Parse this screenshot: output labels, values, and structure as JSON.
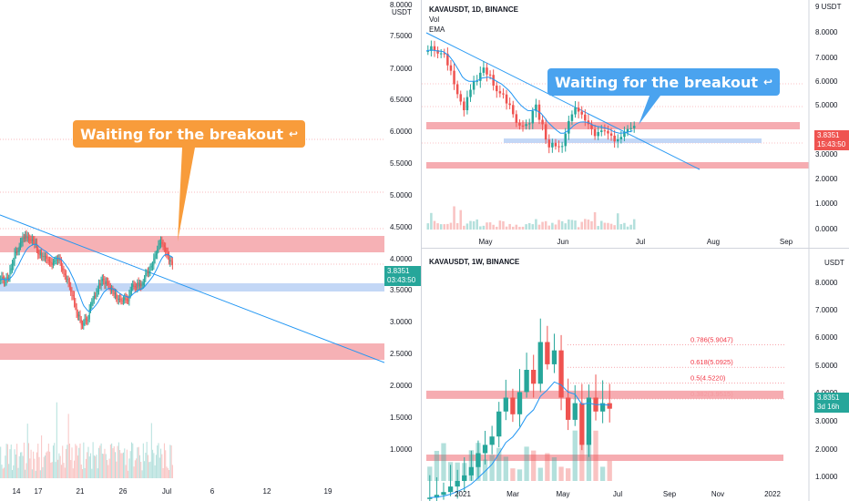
{
  "left": {
    "x_ticks": [
      "14",
      "17",
      "21",
      "26",
      "Jul",
      "6",
      "12",
      "19"
    ],
    "callout": "Waiting for the breakout",
    "price_tag": "3.8351",
    "countdown": "03:43:50"
  },
  "mid_axis": {
    "daily_ticks": [
      "8.0000",
      "7.5000",
      "7.0000",
      "6.5000",
      "6.0000",
      "5.5000",
      "5.0000",
      "4.5000",
      "4.0000",
      "3.5000",
      "3.0000",
      "2.5000",
      "2.0000",
      "1.5000",
      "1.0000"
    ],
    "weekly_ticks": [
      "9.0000"
    ]
  },
  "daily": {
    "symbol": "KAVAUSDT, 1D, BINANCE",
    "vol_label": "Vol",
    "ema_label": "EMA",
    "unit": "USDT",
    "callout": "Waiting for the breakout",
    "x_ticks": [
      "May",
      "Jun",
      "Jul",
      "Aug",
      "Sep"
    ],
    "right_ticks": [
      "9 USDT",
      "8.0000",
      "7.0000",
      "6.0000",
      "5.0000",
      "3.0000",
      "2.0000",
      "1.0000",
      "0.0000"
    ],
    "price_tag": "3.8351",
    "countdown": "15:43:50"
  },
  "weekly": {
    "symbol": "KAVAUSDT, 1W, BINANCE",
    "unit": "USDT",
    "x_ticks": [
      "2021",
      "Mar",
      "May",
      "Jul",
      "Sep",
      "Nov",
      "2022"
    ],
    "right_ticks": [
      "8.0000",
      "7.0000",
      "6.0000",
      "5.0000",
      "4.0000",
      "3.0000",
      "2.0000",
      "1.0000"
    ],
    "fib_labels": [
      "0.786(5.9047)",
      "0.618(5.0925)",
      "0.5(4.5220)",
      "0.382(3.9515)"
    ],
    "price_tag": "3.8351",
    "countdown": "3d 16h"
  },
  "colors": {
    "up": "#26a69a",
    "down": "#ef5350",
    "resistance": "#f5a3a8",
    "support": "#bcd3f5",
    "trend": "#2196f3",
    "callout_orange": "#f89c3b",
    "callout_blue": "#4aa3ef"
  }
}
